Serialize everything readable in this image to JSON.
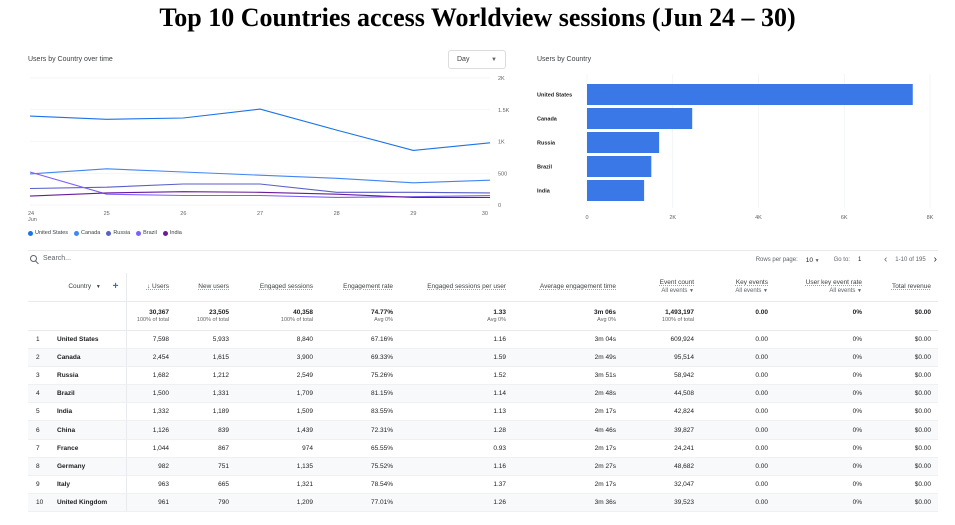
{
  "title": "Top 10 Countries access Worldview sessions (Jun 24 – 30)",
  "line_card": {
    "title": "Users by Country over time",
    "dropdown_value": "Day",
    "y_ticks": [
      "2K",
      "1.5K",
      "1K",
      "500",
      "0"
    ],
    "x_ticks": [
      "24",
      "25",
      "26",
      "27",
      "28",
      "29",
      "30"
    ],
    "x_sub": "Jun",
    "legend": [
      "United States",
      "Canada",
      "Russia",
      "Brazil",
      "India"
    ]
  },
  "bar_card": {
    "title": "Users by Country",
    "x_ticks": [
      "0",
      "2K",
      "4K",
      "6K",
      "8K"
    ]
  },
  "chart_data": [
    {
      "type": "line",
      "title": "Users by Country over time",
      "x": [
        "Jun 24",
        "Jun 25",
        "Jun 26",
        "Jun 27",
        "Jun 28",
        "Jun 29",
        "Jun 30"
      ],
      "ylim": [
        0,
        2000
      ],
      "series": [
        {
          "name": "United States",
          "color": "#1a73e8",
          "values": [
            1400,
            1350,
            1370,
            1510,
            1180,
            860,
            980
          ]
        },
        {
          "name": "Canada",
          "color": "#4285f4",
          "values": [
            490,
            570,
            520,
            470,
            420,
            350,
            390
          ]
        },
        {
          "name": "Russia",
          "color": "#5b5fc7",
          "values": [
            260,
            280,
            330,
            330,
            200,
            200,
            190
          ]
        },
        {
          "name": "Brazil",
          "color": "#7b61ff",
          "values": [
            520,
            170,
            150,
            150,
            120,
            130,
            150
          ]
        },
        {
          "name": "India",
          "color": "#6a1b9a",
          "values": [
            140,
            190,
            210,
            200,
            170,
            120,
            120
          ]
        }
      ],
      "legend": "bottom-left",
      "grid": true
    },
    {
      "type": "bar",
      "orientation": "horizontal",
      "title": "Users by Country",
      "categories": [
        "United States",
        "Canada",
        "Russia",
        "Brazil",
        "India"
      ],
      "values": [
        7598,
        2454,
        1682,
        1500,
        1332
      ],
      "xlim": [
        0,
        8000
      ],
      "color": "#3b78e7"
    }
  ],
  "search": {
    "placeholder": "Search..."
  },
  "pager": {
    "rows_label": "Rows per page:",
    "rows_value": "10",
    "goto_label": "Go to:",
    "goto_value": "1",
    "range": "1-10 of 195"
  },
  "table": {
    "columns": {
      "country": "Country",
      "users": "↓ Users",
      "new_users": "New users",
      "engaged_sessions": "Engaged sessions",
      "engagement_rate": "Engagement rate",
      "eng_per_user": "Engaged sessions per user",
      "avg_time": "Average engagement time",
      "event_count": "Event count",
      "event_count_sub": "All events",
      "key_events": "Key events",
      "key_events_sub": "All events",
      "key_rate": "User key event rate",
      "key_rate_sub": "All events",
      "revenue": "Total revenue"
    },
    "totals": {
      "users": "30,367",
      "users_sub": "100% of total",
      "new_users": "23,505",
      "new_users_sub": "100% of total",
      "engaged_sessions": "40,358",
      "engaged_sessions_sub": "100% of total",
      "engagement_rate": "74.77%",
      "engagement_rate_sub": "Avg 0%",
      "eng_per_user": "1.33",
      "eng_per_user_sub": "Avg 0%",
      "avg_time": "3m 06s",
      "avg_time_sub": "Avg 0%",
      "event_count": "1,493,197",
      "event_count_sub": "100% of total",
      "key_events": "0.00",
      "key_rate": "0%",
      "revenue": "$0.00"
    },
    "rows": [
      [
        "1",
        "United States",
        "7,598",
        "5,933",
        "8,840",
        "67.16%",
        "1.16",
        "3m 04s",
        "609,924",
        "0.00",
        "0%",
        "$0.00"
      ],
      [
        "2",
        "Canada",
        "2,454",
        "1,615",
        "3,900",
        "69.33%",
        "1.59",
        "2m 49s",
        "95,514",
        "0.00",
        "0%",
        "$0.00"
      ],
      [
        "3",
        "Russia",
        "1,682",
        "1,212",
        "2,549",
        "75.26%",
        "1.52",
        "3m 51s",
        "58,942",
        "0.00",
        "0%",
        "$0.00"
      ],
      [
        "4",
        "Brazil",
        "1,500",
        "1,331",
        "1,709",
        "81.15%",
        "1.14",
        "2m 48s",
        "44,508",
        "0.00",
        "0%",
        "$0.00"
      ],
      [
        "5",
        "India",
        "1,332",
        "1,189",
        "1,509",
        "83.55%",
        "1.13",
        "2m 17s",
        "42,824",
        "0.00",
        "0%",
        "$0.00"
      ],
      [
        "6",
        "China",
        "1,126",
        "839",
        "1,439",
        "72.31%",
        "1.28",
        "4m 46s",
        "39,827",
        "0.00",
        "0%",
        "$0.00"
      ],
      [
        "7",
        "France",
        "1,044",
        "867",
        "974",
        "65.55%",
        "0.93",
        "2m 17s",
        "24,241",
        "0.00",
        "0%",
        "$0.00"
      ],
      [
        "8",
        "Germany",
        "982",
        "751",
        "1,135",
        "75.52%",
        "1.16",
        "2m 27s",
        "48,682",
        "0.00",
        "0%",
        "$0.00"
      ],
      [
        "9",
        "Italy",
        "963",
        "665",
        "1,321",
        "78.54%",
        "1.37",
        "2m 17s",
        "32,047",
        "0.00",
        "0%",
        "$0.00"
      ],
      [
        "10",
        "United Kingdom",
        "961",
        "790",
        "1,209",
        "77.01%",
        "1.26",
        "3m 36s",
        "39,523",
        "0.00",
        "0%",
        "$0.00"
      ]
    ]
  }
}
